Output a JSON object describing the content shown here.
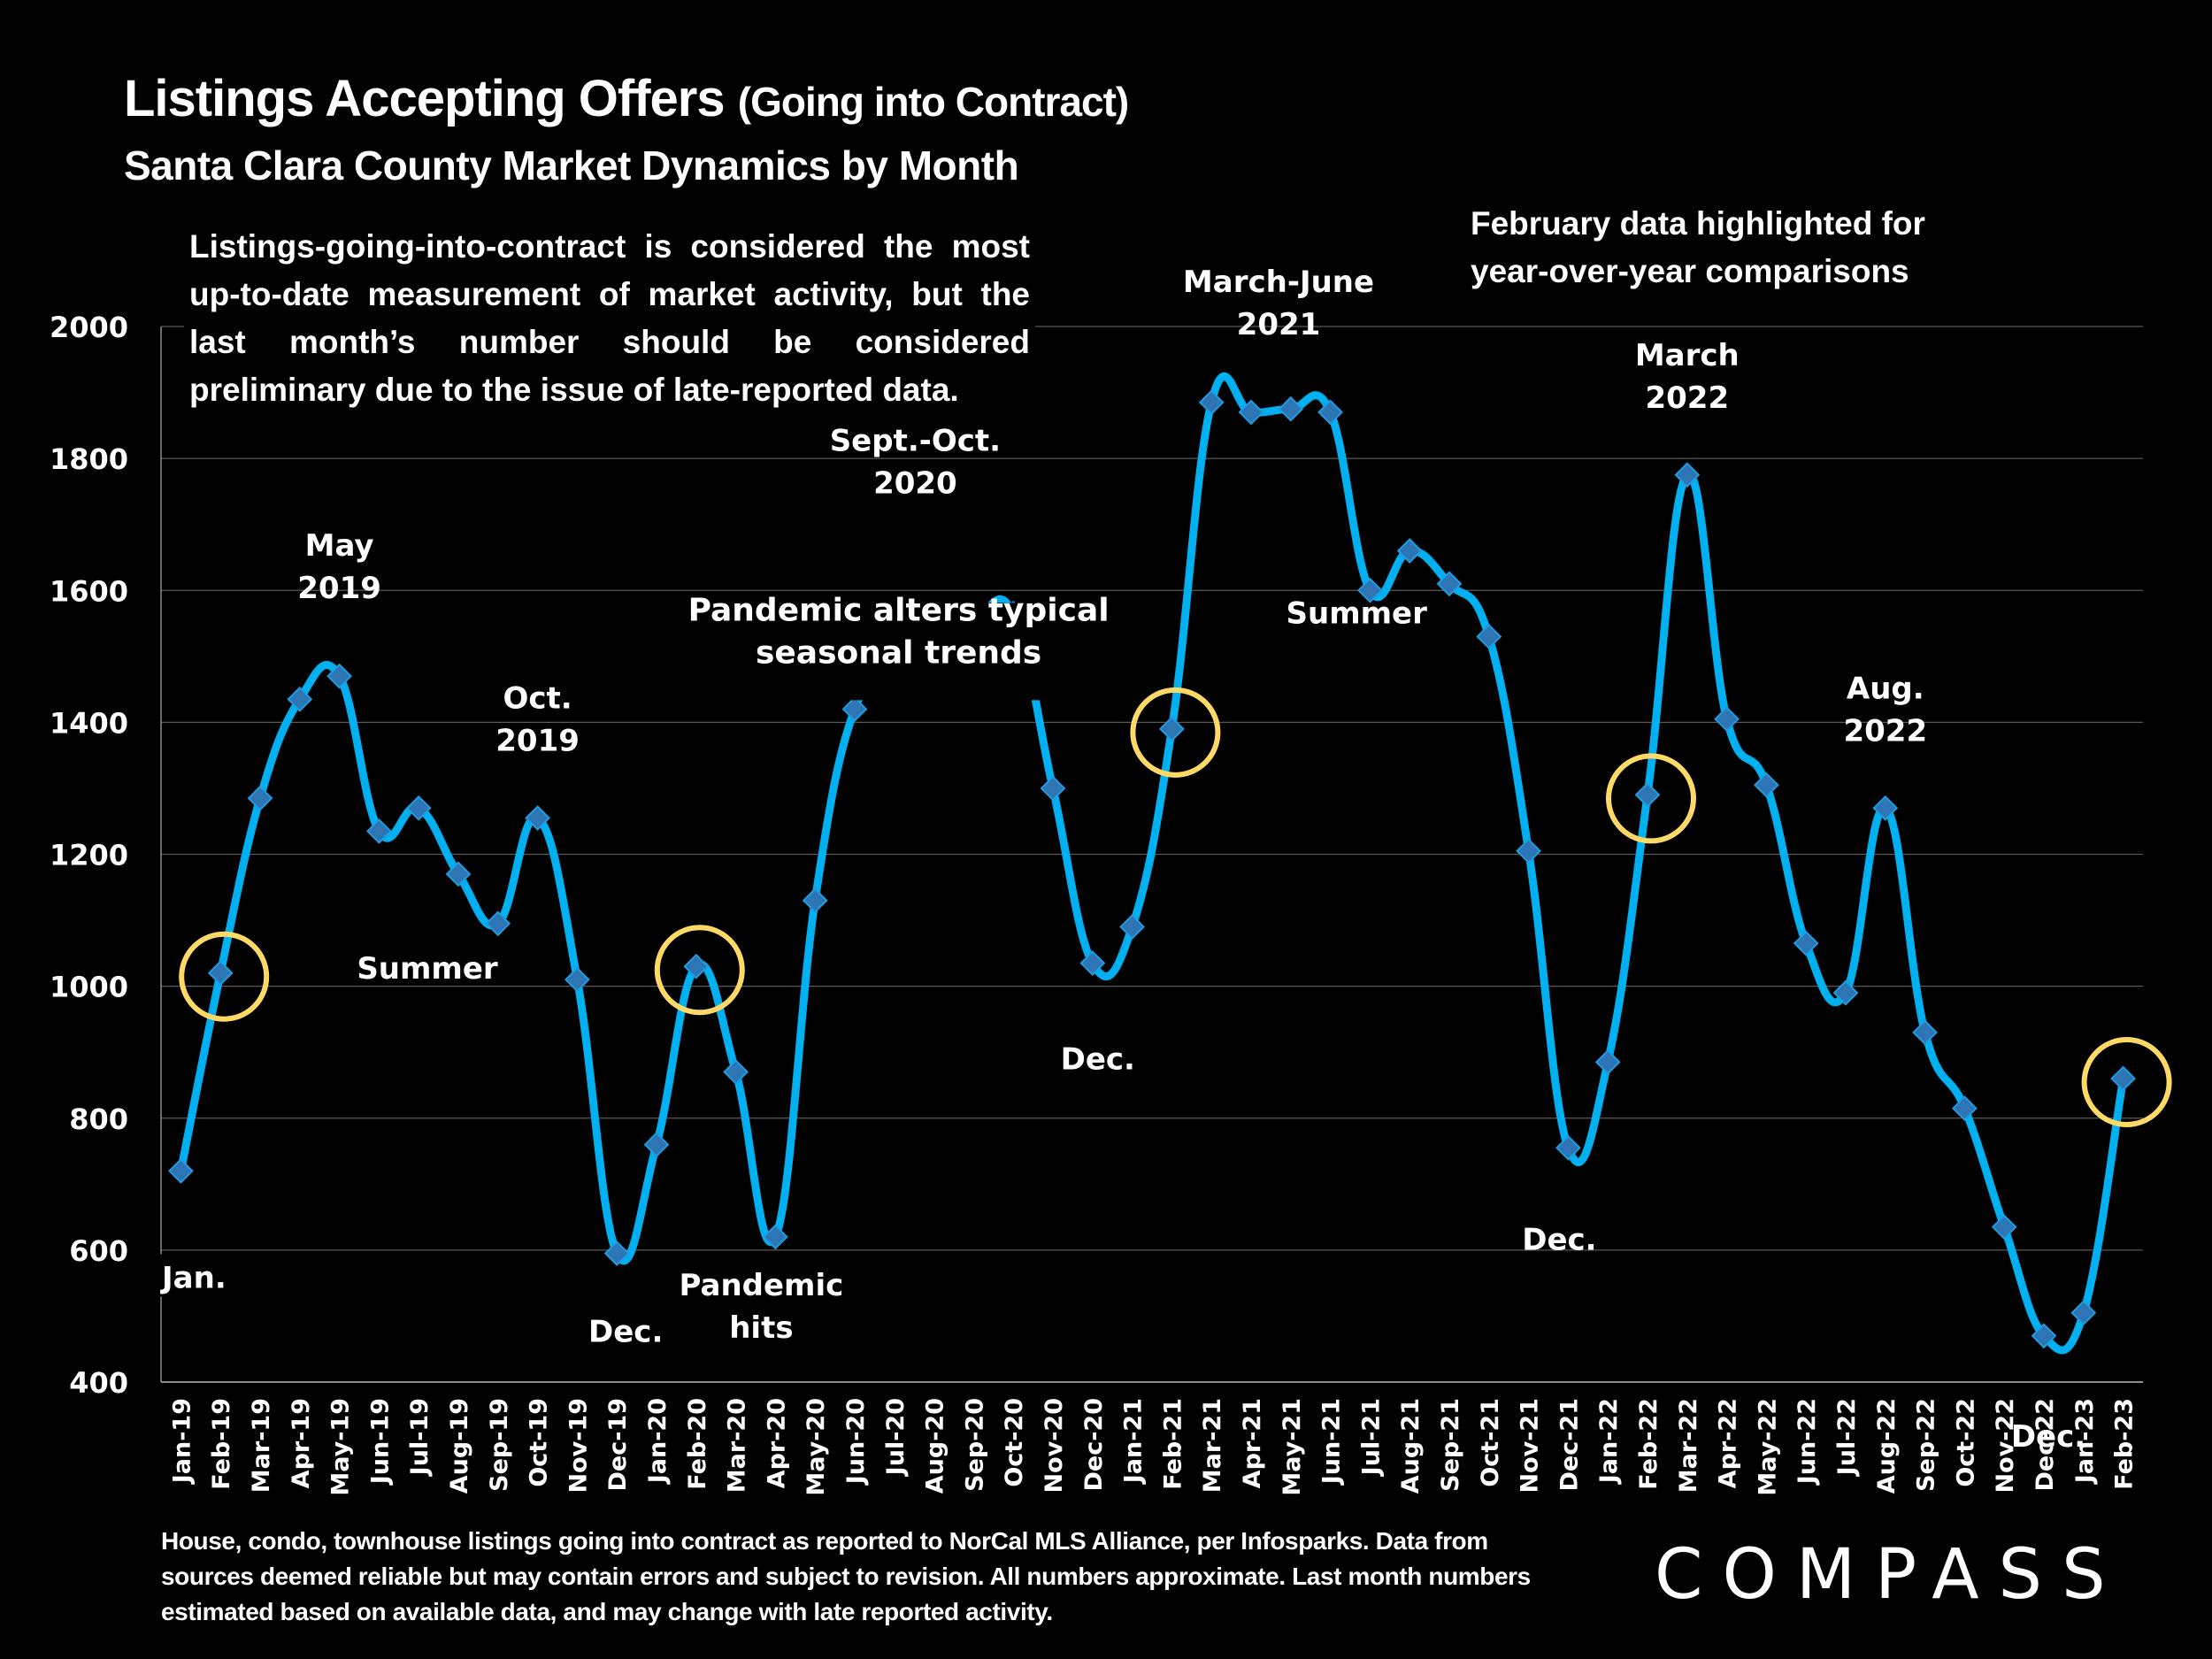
{
  "header": {
    "title_main": "Listings Accepting Offers",
    "title_paren": "(Going into Contract)",
    "subtitle": "Santa Clara County Market Dynamics by Month"
  },
  "notes": {
    "methodology": "Listings-going-into-contract is considered the most up-to-date measurement of market activity, but the last month’s number should be considered preliminary due to the issue of late-reported data.",
    "february_line1": "February data highlighted for",
    "february_line2": "year-over-year comparisons"
  },
  "footer": {
    "disclaimer": "House, condo, townhouse listings going into contract as reported to NorCal MLS Alliance, per Infosparks. Data from sources deemed reliable but may contain errors and subject to revision. All numbers approximate. Last month numbers estimated based on available data, and may change with late reported activity.",
    "logo": "COMPASS"
  },
  "colors": {
    "background": "#000000",
    "line": "#00B0F0",
    "marker": "#2E75B6",
    "marker_edge": "#1F9BDE",
    "highlight_ring": "#FFD966",
    "grid": "#595959",
    "text": "#FFFFFF"
  },
  "chart_data": {
    "type": "line",
    "title": "Listings Accepting Offers (Going into Contract)",
    "subtitle": "Santa Clara County Market Dynamics by Month",
    "xlabel": "",
    "ylabel": "",
    "ylim": [
      400,
      2000
    ],
    "yticks": [
      400,
      600,
      800,
      1000,
      1200,
      1400,
      1600,
      1800,
      2000
    ],
    "grid": true,
    "categories": [
      "Jan-19",
      "Feb-19",
      "Mar-19",
      "Apr-19",
      "May-19",
      "Jun-19",
      "Jul-19",
      "Aug-19",
      "Sep-19",
      "Oct-19",
      "Nov-19",
      "Dec-19",
      "Jan-20",
      "Feb-20",
      "Mar-20",
      "Apr-20",
      "May-20",
      "Jun-20",
      "Jul-20",
      "Aug-20",
      "Sep-20",
      "Oct-20",
      "Nov-20",
      "Dec-20",
      "Jan-21",
      "Feb-21",
      "Mar-21",
      "Apr-21",
      "May-21",
      "Jun-21",
      "Jul-21",
      "Aug-21",
      "Sep-21",
      "Oct-21",
      "Nov-21",
      "Dec-21",
      "Jan-22",
      "Feb-22",
      "Mar-22",
      "Apr-22",
      "May-22",
      "Jun-22",
      "Jul-22",
      "Aug-22",
      "Sep-22",
      "Oct-22",
      "Nov-22",
      "Dec-22",
      "Jan-23",
      "Feb-23"
    ],
    "series": [
      {
        "name": "Listings Accepting Offers",
        "values": [
          720,
          1020,
          1285,
          1435,
          1470,
          1235,
          1270,
          1170,
          1095,
          1255,
          1010,
          595,
          760,
          1030,
          870,
          620,
          1130,
          1420,
          1460,
          1455,
          1545,
          1565,
          1300,
          1035,
          1090,
          1390,
          1885,
          1870,
          1875,
          1870,
          1600,
          1660,
          1610,
          1530,
          1205,
          755,
          885,
          1290,
          1775,
          1405,
          1305,
          1065,
          990,
          1270,
          930,
          815,
          635,
          470,
          505,
          860
        ]
      }
    ],
    "highlighted": [
      "Feb-19",
      "Feb-20",
      "Feb-21",
      "Feb-22",
      "Feb-23"
    ],
    "annotations": [
      {
        "text": "Jan.",
        "anchor": "Jan-19"
      },
      {
        "text": "May\n2019",
        "anchor": "May-19"
      },
      {
        "text": "Summer",
        "anchor": "Aug-19"
      },
      {
        "text": "Oct.\n2019",
        "anchor": "Oct-19"
      },
      {
        "text": "Dec.",
        "anchor": "Dec-19"
      },
      {
        "text": "Pandemic\nhits",
        "anchor": "Apr-20"
      },
      {
        "text": "Sept.-Oct.\n2020",
        "anchor": "Sep-20"
      },
      {
        "text": "Pandemic alters typical\nseasonal trends",
        "anchor": "Aug-20"
      },
      {
        "text": "Dec.",
        "anchor": "Dec-20"
      },
      {
        "text": "March-June\n2021",
        "anchor": "Apr-21"
      },
      {
        "text": "Summer",
        "anchor": "Aug-21"
      },
      {
        "text": "Dec.",
        "anchor": "Dec-21"
      },
      {
        "text": "March\n2022",
        "anchor": "Mar-22"
      },
      {
        "text": "Aug.\n2022",
        "anchor": "Aug-22"
      },
      {
        "text": "Dec.",
        "anchor": "Dec-22"
      }
    ]
  }
}
